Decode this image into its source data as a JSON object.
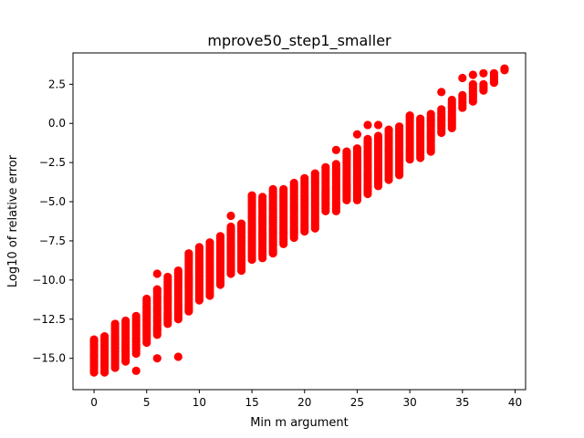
{
  "chart_data": {
    "type": "scatter",
    "title": "mprove50_step1_smaller",
    "xlabel": "Min m argument",
    "ylabel": "Log10 of relative error",
    "xlim": [
      -2,
      41
    ],
    "ylim": [
      -17,
      4.5
    ],
    "xticks": [
      "0",
      "5",
      "10",
      "15",
      "20",
      "25",
      "30",
      "35",
      "40"
    ],
    "xtick_values": [
      0,
      5,
      10,
      15,
      20,
      25,
      30,
      35,
      40
    ],
    "yticks": [
      "−15.0",
      "−12.5",
      "−10.0",
      "−7.5",
      "−5.0",
      "−2.5",
      "0.0",
      "2.5"
    ],
    "ytick_values": [
      -15,
      -12.5,
      -10,
      -7.5,
      -5,
      -2.5,
      0,
      2.5
    ],
    "grid": false,
    "legend": "none",
    "marker_color": "#ff0000",
    "series": [
      {
        "columns": [
          {
            "x": 0,
            "ymin": -15.9,
            "ymax": -13.8
          },
          {
            "x": 1,
            "ymin": -15.9,
            "ymax": -13.6
          },
          {
            "x": 2,
            "ymin": -15.6,
            "ymax": -12.8
          },
          {
            "x": 3,
            "ymin": -15.2,
            "ymax": -12.6
          },
          {
            "x": 4,
            "ymin": -14.7,
            "ymax": -12.3
          },
          {
            "x": 5,
            "ymin": -14.0,
            "ymax": -11.2
          },
          {
            "x": 6,
            "ymin": -13.5,
            "ymax": -10.6
          },
          {
            "x": 7,
            "ymin": -12.8,
            "ymax": -9.8
          },
          {
            "x": 8,
            "ymin": -12.5,
            "ymax": -9.4
          },
          {
            "x": 9,
            "ymin": -12.0,
            "ymax": -8.3
          },
          {
            "x": 10,
            "ymin": -11.3,
            "ymax": -7.9
          },
          {
            "x": 11,
            "ymin": -11.0,
            "ymax": -7.6
          },
          {
            "x": 12,
            "ymin": -10.3,
            "ymax": -7.2
          },
          {
            "x": 13,
            "ymin": -9.6,
            "ymax": -6.6
          },
          {
            "x": 14,
            "ymin": -9.4,
            "ymax": -6.4
          },
          {
            "x": 15,
            "ymin": -8.7,
            "ymax": -4.6
          },
          {
            "x": 16,
            "ymin": -8.6,
            "ymax": -4.7
          },
          {
            "x": 17,
            "ymin": -8.3,
            "ymax": -4.2
          },
          {
            "x": 18,
            "ymin": -7.7,
            "ymax": -4.2
          },
          {
            "x": 19,
            "ymin": -7.3,
            "ymax": -3.8
          },
          {
            "x": 20,
            "ymin": -6.9,
            "ymax": -3.5
          },
          {
            "x": 21,
            "ymin": -6.7,
            "ymax": -3.2
          },
          {
            "x": 22,
            "ymin": -5.6,
            "ymax": -2.8
          },
          {
            "x": 23,
            "ymin": -5.6,
            "ymax": -2.6
          },
          {
            "x": 24,
            "ymin": -4.9,
            "ymax": -1.8
          },
          {
            "x": 25,
            "ymin": -4.9,
            "ymax": -1.6
          },
          {
            "x": 26,
            "ymin": -4.5,
            "ymax": -1.0
          },
          {
            "x": 27,
            "ymin": -4.0,
            "ymax": -0.8
          },
          {
            "x": 28,
            "ymin": -3.6,
            "ymax": -0.4
          },
          {
            "x": 29,
            "ymin": -3.3,
            "ymax": -0.2
          },
          {
            "x": 30,
            "ymin": -2.3,
            "ymax": 0.5
          },
          {
            "x": 31,
            "ymin": -2.2,
            "ymax": 0.3
          },
          {
            "x": 32,
            "ymin": -1.8,
            "ymax": 0.6
          },
          {
            "x": 33,
            "ymin": -0.6,
            "ymax": 0.9
          },
          {
            "x": 34,
            "ymin": -0.3,
            "ymax": 1.5
          },
          {
            "x": 35,
            "ymin": 1.0,
            "ymax": 1.8
          },
          {
            "x": 36,
            "ymin": 1.4,
            "ymax": 2.5
          },
          {
            "x": 37,
            "ymin": 2.1,
            "ymax": 2.5
          },
          {
            "x": 38,
            "ymin": 2.6,
            "ymax": 3.2
          },
          {
            "x": 39,
            "ymin": 3.4,
            "ymax": 3.5
          }
        ],
        "outliers": [
          {
            "x": 4,
            "y": -15.8
          },
          {
            "x": 6,
            "y": -15.0
          },
          {
            "x": 8,
            "y": -14.9
          },
          {
            "x": 6,
            "y": -9.6
          },
          {
            "x": 13,
            "y": -5.9
          },
          {
            "x": 23,
            "y": -1.7
          },
          {
            "x": 26,
            "y": -0.1
          },
          {
            "x": 25,
            "y": -0.7
          },
          {
            "x": 27,
            "y": -0.1
          },
          {
            "x": 33,
            "y": 2.0
          },
          {
            "x": 35,
            "y": 2.9
          },
          {
            "x": 36,
            "y": 3.1
          },
          {
            "x": 37,
            "y": 3.2
          }
        ]
      }
    ]
  }
}
